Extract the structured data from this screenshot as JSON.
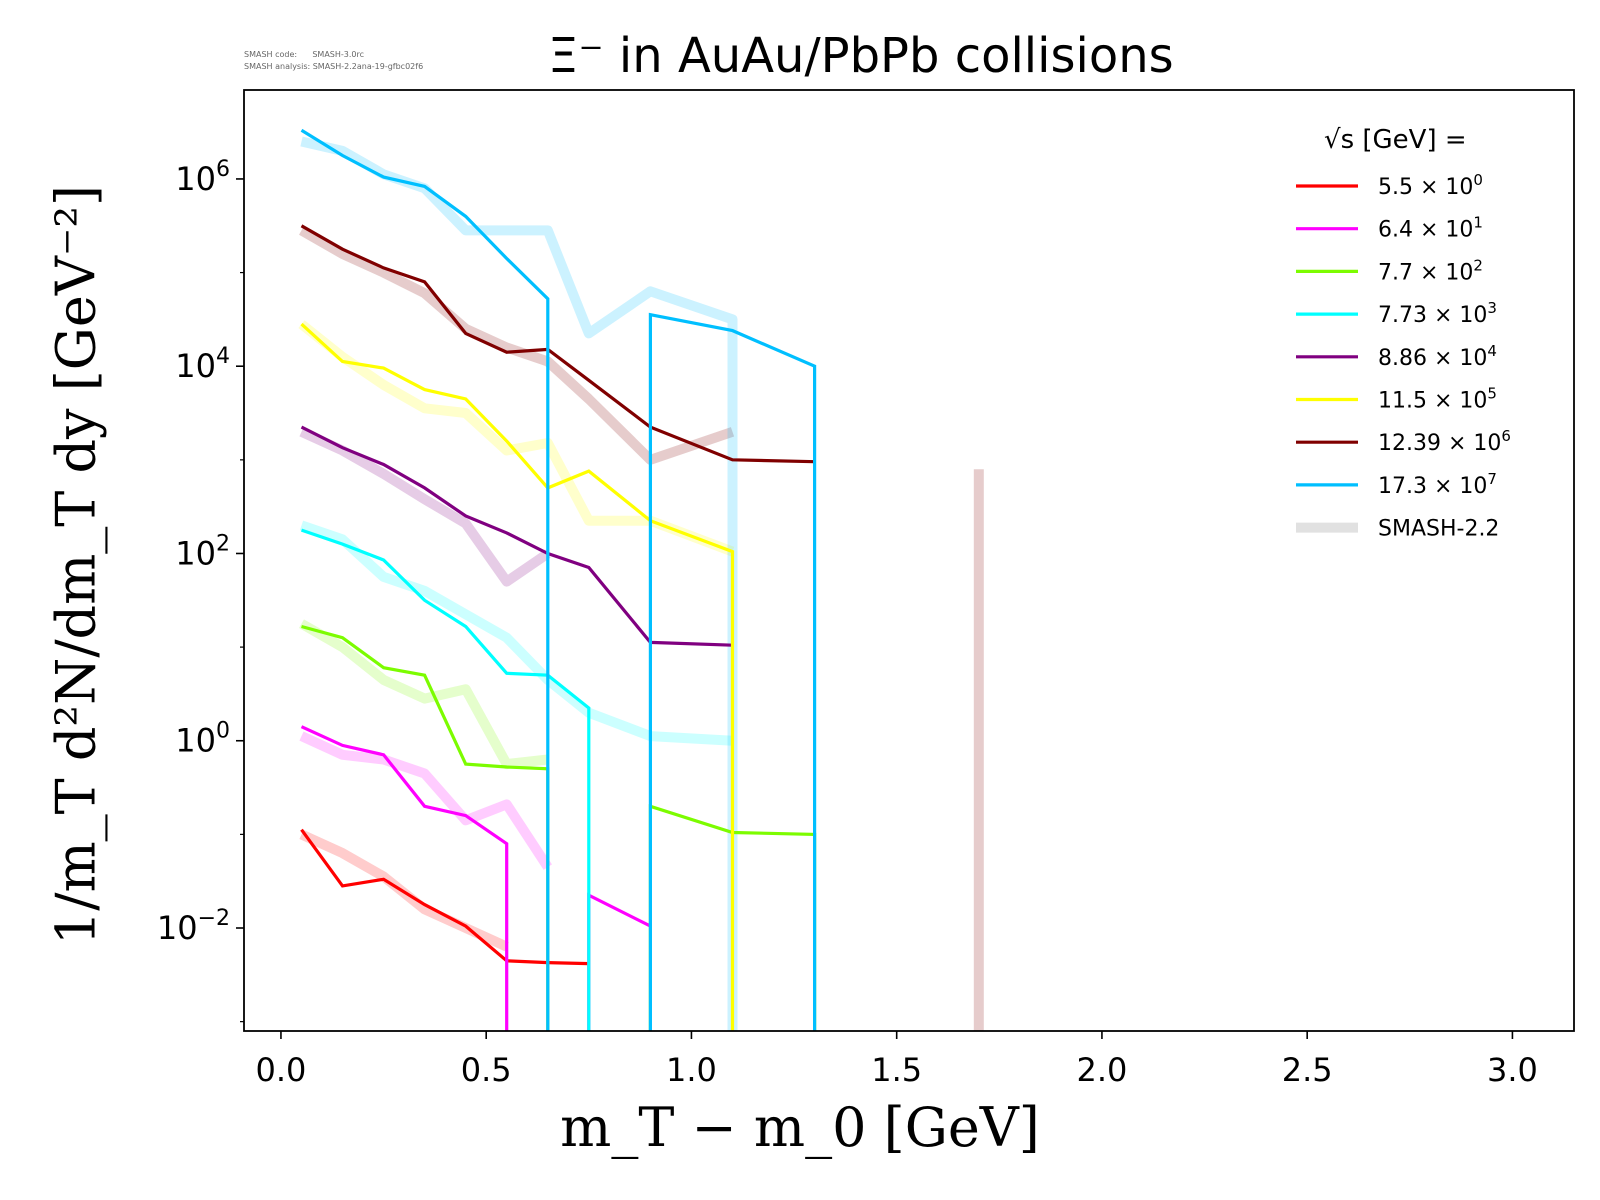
{
  "meta": {
    "code_line": "SMASH code:      SMASH-3.0rc",
    "analysis_line": "SMASH analysis: SMASH-2.2ana-19-gfbc02f6"
  },
  "chart_data": {
    "type": "line",
    "title": "Ξ⁻ in AuAu/PbPb collisions",
    "xlabel": "m_T − m_0 [GeV]",
    "ylabel": "1/m_T d²N/dm_T dy [GeV⁻²]",
    "xlim": [
      -0.09,
      3.15
    ],
    "ylog_range": [
      -3.1,
      6.95
    ],
    "yscale": "log",
    "xticks": [
      0.0,
      0.5,
      1.0,
      1.5,
      2.0,
      2.5,
      3.0
    ],
    "xtick_labels": [
      "0.0",
      "0.5",
      "1.0",
      "1.5",
      "2.0",
      "2.5",
      "3.0"
    ],
    "yticks_exp": [
      -2,
      0,
      2,
      4,
      6
    ],
    "legend_title": "√s [GeV] =",
    "legend_position": "top-right",
    "series": [
      {
        "name": "5.5 × 10⁰",
        "mantissa": "5.5",
        "exp": "0",
        "color": "#ff0000",
        "x": [
          0.05,
          0.15,
          0.25,
          0.35,
          0.45,
          0.55,
          0.65,
          0.75
        ],
        "logy": [
          -0.95,
          -1.55,
          -1.48,
          -1.75,
          -1.98,
          -2.35,
          -2.37,
          -2.38
        ],
        "drop_to_bottom": false
      },
      {
        "name": "6.4 × 10¹",
        "mantissa": "6.4",
        "exp": "1",
        "color": "#ff00ff",
        "x": [
          0.05,
          0.15,
          0.25,
          0.35,
          0.45,
          0.55,
          0.55,
          null,
          0.75,
          0.75,
          0.9
        ],
        "logy": [
          0.15,
          -0.05,
          -0.15,
          -0.7,
          -0.8,
          -1.1,
          -3.1,
          null,
          -3.1,
          -1.65,
          -1.98
        ],
        "drop_to_bottom": false
      },
      {
        "name": "7.7 × 10²",
        "mantissa": "7.7",
        "exp": "2",
        "color": "#7cfc00",
        "x": [
          0.05,
          0.15,
          0.25,
          0.35,
          0.45,
          0.55,
          0.65,
          0.65,
          null,
          0.9,
          0.9,
          1.1,
          1.3,
          1.3
        ],
        "logy": [
          1.22,
          1.1,
          0.78,
          0.7,
          -0.25,
          -0.28,
          -0.3,
          -3.1,
          null,
          -3.1,
          -0.7,
          -0.98,
          -1.0,
          -3.1
        ],
        "drop_to_bottom": false
      },
      {
        "name": "7.73 × 10³",
        "mantissa": "7.73",
        "exp": "3",
        "color": "#00ffff",
        "x": [
          0.05,
          0.15,
          0.25,
          0.35,
          0.45,
          0.55,
          0.65,
          0.75,
          0.75
        ],
        "logy": [
          2.25,
          2.1,
          1.93,
          1.5,
          1.22,
          0.72,
          0.7,
          0.35,
          -3.1
        ],
        "drop_to_bottom": false
      },
      {
        "name": "8.86 × 10⁴",
        "mantissa": "8.86",
        "exp": "4",
        "color": "#800080",
        "x": [
          0.05,
          0.15,
          0.25,
          0.35,
          0.45,
          0.55,
          0.65,
          0.75,
          0.9,
          1.1
        ],
        "logy": [
          3.35,
          3.13,
          2.95,
          2.7,
          2.4,
          2.22,
          2.0,
          1.85,
          1.05,
          1.02
        ],
        "drop_to_bottom": false
      },
      {
        "name": "11.5 × 10⁵",
        "mantissa": "11.5",
        "exp": "5",
        "color": "#ffff00",
        "x": [
          0.05,
          0.15,
          0.25,
          0.35,
          0.45,
          0.55,
          0.65,
          0.75,
          0.9,
          1.1,
          1.1
        ],
        "logy": [
          4.45,
          4.05,
          3.98,
          3.75,
          3.65,
          3.2,
          2.7,
          2.88,
          2.35,
          2.02,
          -3.1
        ],
        "drop_to_bottom": false
      },
      {
        "name": "12.39 × 10⁶",
        "mantissa": "12.39",
        "exp": "6",
        "color": "#800000",
        "x": [
          0.05,
          0.15,
          0.25,
          0.35,
          0.45,
          0.55,
          0.65,
          0.75,
          0.9,
          1.1,
          1.3
        ],
        "logy": [
          5.5,
          5.25,
          5.05,
          4.9,
          4.35,
          4.15,
          4.18,
          3.85,
          3.35,
          3.0,
          2.98
        ],
        "drop_to_bottom": false
      },
      {
        "name": "17.3 × 10⁷",
        "mantissa": "17.3",
        "exp": "7",
        "color": "#00bfff",
        "x": [
          0.05,
          0.15,
          0.25,
          0.35,
          0.45,
          0.55,
          0.65,
          0.65,
          null,
          0.9,
          0.9,
          1.1,
          1.3,
          1.3
        ],
        "logy": [
          6.52,
          6.25,
          6.02,
          5.92,
          5.6,
          5.15,
          4.72,
          -3.1,
          null,
          -3.1,
          4.55,
          4.38,
          4.0,
          -3.1
        ],
        "drop_to_bottom": false
      },
      {
        "name": "SMASH-2.2",
        "mantissa": "",
        "exp": "",
        "color": "#d9d9d9",
        "is_reference": true,
        "x": [],
        "logy": [],
        "drop_to_bottom": false
      }
    ],
    "reference_curves": [
      {
        "color": "#ff0000",
        "x": [
          0.05,
          0.15,
          0.25,
          0.35,
          0.45,
          0.55
        ],
        "logy": [
          -1.0,
          -1.2,
          -1.45,
          -1.8,
          -2.0,
          -2.2
        ]
      },
      {
        "color": "#ff00ff",
        "x": [
          0.05,
          0.15,
          0.25,
          0.35,
          0.45,
          0.55,
          0.65
        ],
        "logy": [
          0.05,
          -0.15,
          -0.2,
          -0.35,
          -0.85,
          -0.68,
          -1.35
        ]
      },
      {
        "color": "#7cfc00",
        "x": [
          0.05,
          0.15,
          0.25,
          0.35,
          0.45,
          0.55,
          0.65
        ],
        "logy": [
          1.25,
          1.0,
          0.65,
          0.45,
          0.55,
          -0.25,
          -0.2
        ]
      },
      {
        "color": "#00ffff",
        "x": [
          0.05,
          0.15,
          0.25,
          0.35,
          0.45,
          0.55,
          0.65,
          0.75,
          0.9,
          1.1
        ],
        "logy": [
          2.3,
          2.15,
          1.75,
          1.6,
          1.35,
          1.1,
          0.65,
          0.3,
          0.05,
          0.0
        ]
      },
      {
        "color": "#800080",
        "x": [
          0.05,
          0.15,
          0.25,
          0.35,
          0.45,
          0.55,
          0.65
        ],
        "logy": [
          3.3,
          3.1,
          2.85,
          2.58,
          2.32,
          1.7,
          2.0
        ]
      },
      {
        "color": "#ffff00",
        "x": [
          0.05,
          0.15,
          0.25,
          0.35,
          0.45,
          0.55,
          0.65,
          0.75,
          0.9,
          1.1
        ],
        "logy": [
          4.45,
          4.1,
          3.8,
          3.55,
          3.5,
          3.1,
          3.18,
          2.35,
          2.35,
          2.02
        ]
      },
      {
        "color": "#800000",
        "x": [
          0.05,
          0.15,
          0.25,
          0.35,
          0.45,
          0.55,
          0.65,
          0.75,
          0.9,
          1.1
        ],
        "logy": [
          5.45,
          5.2,
          5.0,
          4.78,
          4.4,
          4.2,
          4.05,
          3.65,
          3.0,
          3.3
        ]
      },
      {
        "color": "#00bfff",
        "x": [
          0.05,
          0.15,
          0.25,
          0.35,
          0.45,
          0.55,
          0.65,
          0.75,
          0.9,
          1.1,
          1.1
        ],
        "logy": [
          6.4,
          6.3,
          6.05,
          5.9,
          5.45,
          5.45,
          5.45,
          4.35,
          4.8,
          4.5,
          -3.1
        ]
      },
      {
        "color": "#800000",
        "x": [
          1.7,
          1.7
        ],
        "logy": [
          2.9,
          -3.1
        ]
      }
    ]
  }
}
